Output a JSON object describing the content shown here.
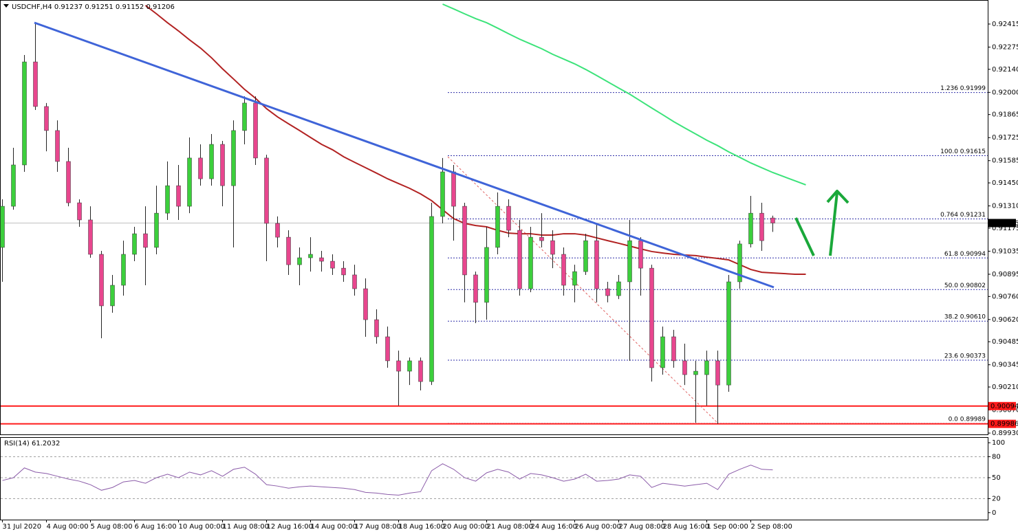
{
  "chart_data": [
    {
      "type": "candlestick",
      "title": "USDCHF,H4  0.91237 0.91251 0.91152 0.91206",
      "categories": [
        "31 Jul 2020",
        null,
        null,
        null,
        "4 Aug 00:00",
        null,
        null,
        null,
        "5 Aug 08:00",
        null,
        null,
        null,
        "6 Aug 16:00",
        null,
        null,
        null,
        "10 Aug 00:00",
        null,
        null,
        null,
        "11 Aug 08:00",
        null,
        null,
        null,
        "12 Aug 16:00",
        null,
        null,
        null,
        "14 Aug 00:00",
        null,
        null,
        null,
        "17 Aug 08:00",
        null,
        null,
        null,
        "18 Aug 16:00",
        null,
        null,
        null,
        "20 Aug 00:00",
        null,
        null,
        null,
        "21 Aug 08:00",
        null,
        null,
        null,
        "24 Aug 16:00",
        null,
        null,
        null,
        "26 Aug 00:00",
        null,
        null,
        null,
        "27 Aug 08:00",
        null,
        null,
        null,
        "28 Aug 16:00",
        null,
        null,
        null,
        "1 Sep 00:00",
        null,
        null,
        null,
        "2 Sep 08:00",
        null,
        null,
        null,
        null,
        null
      ],
      "open": [
        0.91058,
        0.91308,
        0.91559,
        0.92185,
        0.91914,
        0.91768,
        0.9158,
        0.91329,
        0.91225,
        0.91016,
        0.90703,
        0.90828,
        0.91016,
        0.91141,
        0.91058,
        0.91266,
        0.91433,
        0.91308,
        0.91601,
        0.91475,
        0.91684,
        0.91433,
        0.91768,
        0.91935,
        0.91601,
        0.91204,
        0.9112,
        0.90953,
        0.90995,
        0.90995,
        0.90974,
        0.90932,
        0.90891,
        0.90807,
        0.90619,
        0.90515,
        0.90369,
        0.90306,
        0.90369,
        0.90243,
        0.91246,
        0.91517,
        0.91308,
        0.90891,
        0.90724,
        0.91058,
        0.91308,
        0.91162,
        0.90807,
        0.9112,
        0.91099,
        0.91016,
        0.90828,
        0.90911,
        0.91099,
        0.90807,
        0.90765,
        0.90849,
        0.91099,
        0.90932,
        0.90327,
        0.90515,
        0.90369,
        0.90285,
        0.90285,
        0.90369,
        0.90222,
        0.90849,
        0.91079,
        0.91266,
        0.91237,
        null,
        null,
        null
      ],
      "high": [
        0.9135,
        0.91663,
        0.92227,
        0.92415,
        0.91935,
        0.9183,
        0.91663,
        0.9135,
        0.91308,
        0.91037,
        0.90891,
        0.91099,
        0.91183,
        0.91308,
        0.91433,
        0.9158,
        0.91559,
        0.91726,
        0.91684,
        0.91747,
        0.91705,
        0.9183,
        0.91976,
        0.91976,
        0.91621,
        0.91246,
        0.91162,
        0.91058,
        0.9112,
        0.91037,
        0.91016,
        0.90974,
        0.90953,
        0.9087,
        0.90682,
        0.90577,
        0.90431,
        0.90389,
        0.90389,
        0.91329,
        0.91601,
        0.91559,
        0.91329,
        0.90911,
        0.91183,
        0.91392,
        0.9135,
        0.91225,
        0.91183,
        0.91266,
        0.91162,
        0.91058,
        0.90953,
        0.91141,
        0.91204,
        0.90849,
        0.90891,
        0.91225,
        0.9112,
        0.90953,
        0.90577,
        0.90557,
        0.90473,
        0.90369,
        0.90431,
        0.90431,
        0.90891,
        0.91099,
        0.91371,
        0.91329,
        0.91251,
        null,
        null,
        null
      ],
      "low": [
        0.90849,
        0.91287,
        0.91517,
        0.91893,
        0.91642,
        0.91517,
        0.91308,
        0.91183,
        0.90995,
        0.90506,
        0.90661,
        0.90765,
        0.90974,
        0.90828,
        0.91016,
        0.91225,
        0.91225,
        0.91266,
        0.91433,
        0.91433,
        0.91308,
        0.91058,
        0.91684,
        0.91559,
        0.90974,
        0.91058,
        0.90891,
        0.90828,
        0.90911,
        0.90911,
        0.90891,
        0.90849,
        0.90765,
        0.90515,
        0.90473,
        0.90327,
        0.90097,
        0.90222,
        0.90189,
        0.90222,
        0.91204,
        0.91099,
        0.90724,
        0.90598,
        0.90619,
        0.91016,
        0.9112,
        0.90765,
        0.90786,
        0.91058,
        0.90932,
        0.90765,
        0.90724,
        0.90891,
        0.90724,
        0.90724,
        0.90744,
        0.90369,
        0.90765,
        0.90243,
        0.90285,
        0.90327,
        0.90222,
        0.89993,
        0.90097,
        0.89986,
        0.90181,
        0.90807,
        0.91058,
        0.91037,
        0.91152,
        null,
        null,
        null
      ],
      "close": [
        0.91308,
        0.91559,
        0.92185,
        0.91914,
        0.91768,
        0.9158,
        0.91329,
        0.91225,
        0.91016,
        0.90703,
        0.90828,
        0.91016,
        0.91141,
        0.91058,
        0.91266,
        0.91433,
        0.91308,
        0.91601,
        0.91475,
        0.91684,
        0.91433,
        0.91768,
        0.91935,
        0.91601,
        0.91204,
        0.9112,
        0.90953,
        0.90995,
        0.91016,
        0.90974,
        0.90932,
        0.90891,
        0.90807,
        0.90619,
        0.90515,
        0.90369,
        0.90306,
        0.90369,
        0.90243,
        0.91246,
        0.91517,
        0.91308,
        0.90891,
        0.90724,
        0.91058,
        0.91308,
        0.91162,
        0.90807,
        0.9112,
        0.91099,
        0.91016,
        0.90828,
        0.90911,
        0.91099,
        0.90807,
        0.90765,
        0.90849,
        0.91099,
        0.90932,
        0.90327,
        0.90515,
        0.90369,
        0.90285,
        0.90306,
        0.90369,
        0.90222,
        0.90849,
        0.91079,
        0.91266,
        0.91099,
        0.91206,
        null,
        null,
        null
      ],
      "bull_color": "#3ccf3c",
      "bear_color": "#e8468e",
      "wick_color": "#222222",
      "moving_averages": [
        {
          "color": "#b22222",
          "values": [
            null,
            null,
            null,
            null,
            null,
            null,
            null,
            null,
            null,
            null,
            null,
            null,
            null,
            0.92528,
            0.92477,
            0.92423,
            0.92373,
            0.92319,
            0.92269,
            0.9221,
            0.92143,
            0.92081,
            0.92018,
            0.91964,
            0.91901,
            0.91851,
            0.91809,
            0.91768,
            0.91726,
            0.91684,
            0.91651,
            0.91609,
            0.91575,
            0.91542,
            0.91509,
            0.91475,
            0.91446,
            0.91417,
            0.91383,
            0.91342,
            0.91287,
            0.91233,
            0.91204,
            0.91191,
            0.91183,
            0.91162,
            0.91145,
            0.91141,
            0.91141,
            0.91133,
            0.91133,
            0.91141,
            0.91141,
            0.91133,
            0.91116,
            0.91099,
            0.91083,
            0.91066,
            0.91049,
            0.91033,
            0.91024,
            0.91016,
            0.91012,
            0.91008,
            0.90999,
            0.90991,
            0.90982,
            0.90953,
            0.90924,
            0.90907,
            0.90903,
            0.90899,
            0.90895,
            0.90895
          ]
        },
        {
          "color": "#3ce37a",
          "values": [
            null,
            null,
            null,
            null,
            null,
            null,
            null,
            null,
            null,
            null,
            null,
            null,
            null,
            null,
            null,
            null,
            null,
            null,
            null,
            null,
            null,
            null,
            null,
            null,
            null,
            null,
            null,
            null,
            null,
            null,
            null,
            null,
            null,
            null,
            null,
            null,
            null,
            null,
            null,
            null,
            0.92536,
            0.92507,
            0.92477,
            0.92448,
            0.92423,
            0.9239,
            0.92356,
            0.92323,
            0.92294,
            0.92265,
            0.92231,
            0.92202,
            0.92173,
            0.92139,
            0.92102,
            0.92064,
            0.92026,
            0.91989,
            0.91947,
            0.91905,
            0.91864,
            0.91822,
            0.91784,
            0.91747,
            0.91709,
            0.91676,
            0.91638,
            0.91605,
            0.91571,
            0.91542,
            0.91513,
            0.91488,
            0.91463,
            0.91438
          ]
        }
      ],
      "ylim": [
        0.89922,
        0.92561
      ],
      "yticks": [
        0.92415,
        0.92275,
        {
          "value": 0.9214,
          "label": "0.92140"
        },
        {
          "value": 0.92,
          "label": "0.92000"
        },
        0.91865,
        0.91725,
        0.91585,
        {
          "value": 0.9145,
          "label": "0.91450"
        },
        {
          "value": 0.9131,
          "label": "0.91310"
        },
        0.91175,
        0.91035,
        0.90895,
        {
          "value": 0.9076,
          "label": "0.90760"
        },
        {
          "value": 0.9062,
          "label": "0.90620"
        },
        0.90485,
        0.90345,
        {
          "value": 0.9021,
          "label": "0.90210"
        },
        {
          "value": 0.9007,
          "label": "0.90070"
        },
        {
          "value": 0.8993,
          "label": "0.89930"
        }
      ],
      "current_price": 0.91206,
      "hlines": [
        {
          "value": 0.90094,
          "color": "#ff1a1a"
        },
        {
          "value": 0.89986,
          "color": "#ff1a1a"
        }
      ],
      "fib_color": "#2f2fa8",
      "fib_levels": [
        {
          "label": "1.236 0.91999",
          "value": 0.91999
        },
        {
          "label": "100.0 0.91615",
          "value": 0.91615
        },
        {
          "label": "0.764 0.91231",
          "value": 0.91231
        },
        {
          "label": "61.8 0.90994",
          "value": 0.90994
        },
        {
          "label": "50.0 0.90802",
          "value": 0.90802
        },
        {
          "label": "38.2 0.90610",
          "value": 0.9061
        },
        {
          "label": "23.6 0.90373",
          "value": 0.90373
        },
        {
          "label": "0.0 0.89989",
          "value": 0.89989
        }
      ]
    },
    {
      "type": "line",
      "label": "RSI(14) 61.2032",
      "color": "#8a5aa8",
      "values": [
        46,
        50,
        64,
        58,
        56,
        52,
        48,
        45,
        40,
        32,
        36,
        44,
        46,
        42,
        50,
        55,
        50,
        58,
        54,
        60,
        52,
        62,
        65,
        55,
        40,
        38,
        35,
        37,
        38,
        37,
        36,
        35,
        33,
        29,
        28,
        26,
        25,
        28,
        30,
        60,
        70,
        62,
        50,
        45,
        57,
        62,
        58,
        48,
        56,
        54,
        50,
        45,
        48,
        55,
        45,
        46,
        48,
        54,
        52,
        36,
        42,
        40,
        38,
        40,
        42,
        33,
        55,
        62,
        68,
        62,
        61.2032,
        null,
        null,
        null
      ],
      "ylim": [
        -10,
        108
      ],
      "yticks": [
        0,
        20,
        50,
        80,
        100
      ],
      "levels": [
        20,
        50,
        80
      ]
    }
  ]
}
